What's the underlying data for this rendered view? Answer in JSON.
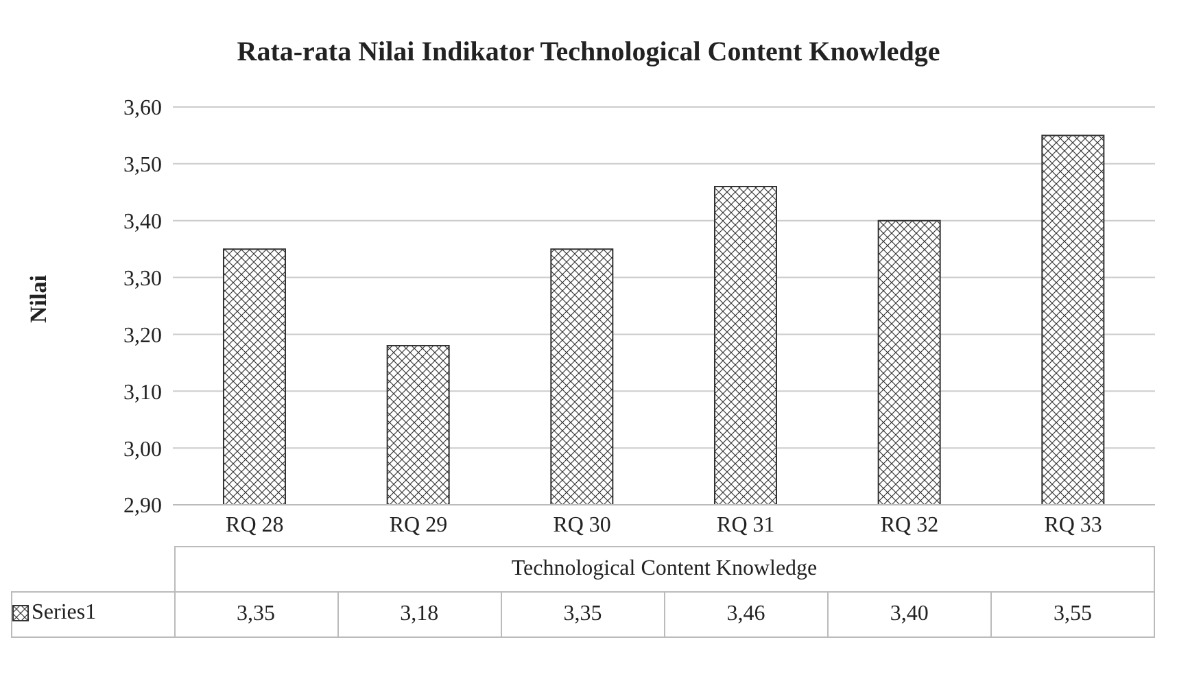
{
  "chart_data": {
    "type": "bar",
    "title": "Rata-rata Nilai Indikator Technological Content Knowledge",
    "xlabel": "Technological Content Knowledge",
    "ylabel": "Nilai",
    "categories": [
      "RQ 28",
      "RQ 29",
      "RQ 30",
      "RQ 31",
      "RQ 32",
      "RQ 33"
    ],
    "series": [
      {
        "name": "Series1",
        "color": "#333333",
        "values": [
          3.35,
          3.18,
          3.35,
          3.46,
          3.4,
          3.55
        ],
        "value_labels": [
          "3,35",
          "3,18",
          "3,35",
          "3,46",
          "3,40",
          "3,55"
        ]
      }
    ],
    "ylim": [
      2.9,
      3.6
    ],
    "yticks": [
      {
        "value": 2.9,
        "label": "2,90"
      },
      {
        "value": 3.0,
        "label": "3,00"
      },
      {
        "value": 3.1,
        "label": "3,10"
      },
      {
        "value": 3.2,
        "label": "3,20"
      },
      {
        "value": 3.3,
        "label": "3,30"
      },
      {
        "value": 3.4,
        "label": "3,40"
      },
      {
        "value": 3.5,
        "label": "3,50"
      },
      {
        "value": 3.6,
        "label": "3,60"
      }
    ],
    "grid": "y",
    "legend": "bottom"
  }
}
